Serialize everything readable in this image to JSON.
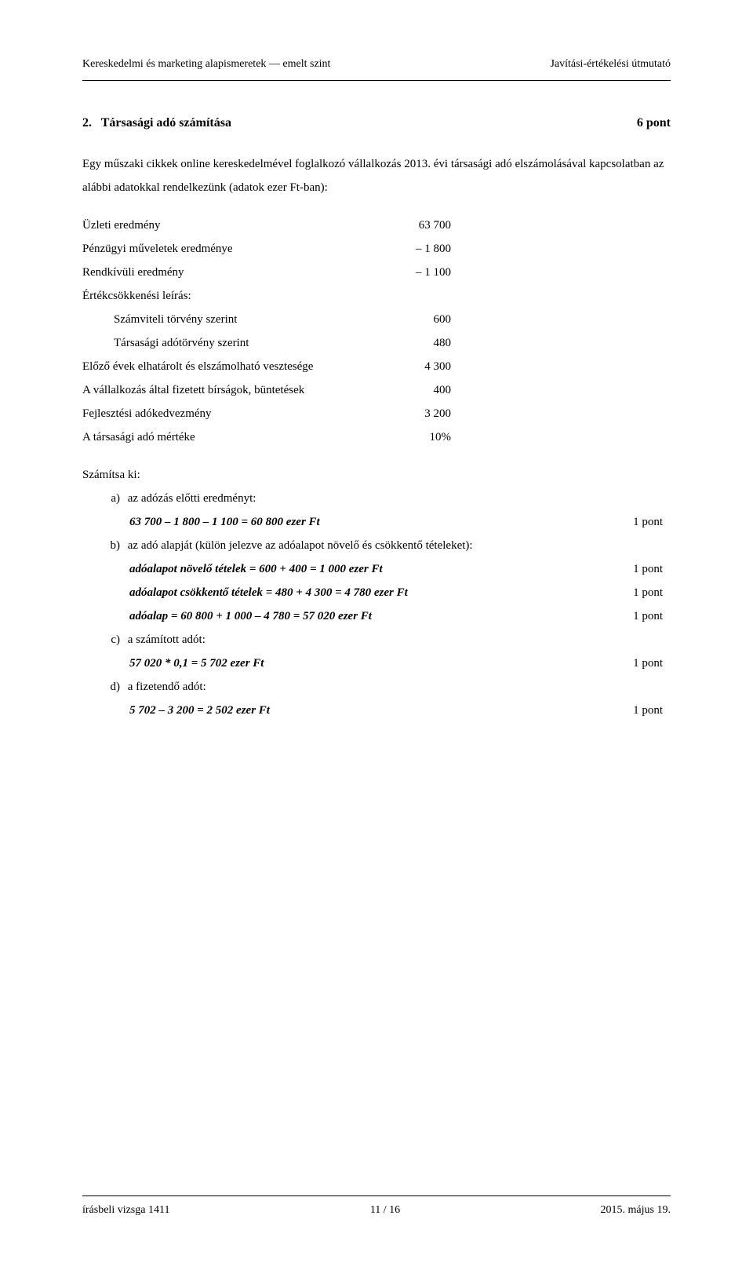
{
  "header": {
    "left": "Kereskedelmi és marketing alapismeretek — emelt szint",
    "right": "Javítási-értékelési útmutató"
  },
  "section": {
    "number": "2.",
    "title": "Társasági adó számítása",
    "points": "6 pont"
  },
  "intro": "Egy műszaki cikkek online kereskedelmével foglalkozó vállalkozás 2013. évi társasági adó elszámolásával kapcsolatban az alábbi adatokkal rendelkezünk (adatok ezer Ft-ban):",
  "data": {
    "r1": {
      "label": "Üzleti eredmény",
      "value": "63 700"
    },
    "r2": {
      "label": "Pénzügyi műveletek eredménye",
      "value": "– 1 800"
    },
    "r3": {
      "label": "Rendkívüli eredmény",
      "value": "– 1 100"
    },
    "r4": {
      "label": "Értékcsökkenési leírás:",
      "value": ""
    },
    "r5": {
      "label": "Számviteli törvény szerint",
      "value": "600"
    },
    "r6": {
      "label": "Társasági adótörvény szerint",
      "value": "480"
    },
    "r7": {
      "label": "Előző évek elhatárolt és elszámolható vesztesége",
      "value": "4 300"
    },
    "r8": {
      "label": "A vállalkozás által fizetett bírságok, büntetések",
      "value": "400"
    },
    "r9": {
      "label": "Fejlesztési adókedvezmény",
      "value": "3 200"
    },
    "r10": {
      "label": "A társasági adó mértéke",
      "value": "10%"
    }
  },
  "compute_label": "Számítsa ki:",
  "parts": {
    "a": {
      "letter": "a)",
      "prompt": "az adózás előtti eredményt:",
      "result": "63 700 – 1 800 – 1 100 = 60 800 ezer Ft",
      "points": "1 pont"
    },
    "b": {
      "letter": "b)",
      "prompt": "az adó alapját (külön jelezve az adóalapot növelő és csökkentő tételeket):",
      "r1": {
        "text": "adóalapot növelő tételek = 600 + 400 = 1 000 ezer Ft",
        "points": "1 pont"
      },
      "r2": {
        "text": "adóalapot csökkentő tételek = 480 + 4 300 = 4 780 ezer Ft",
        "points": "1 pont"
      },
      "r3": {
        "text": "adóalap = 60 800 + 1 000 – 4 780 = 57 020 ezer Ft",
        "points": "1 pont"
      }
    },
    "c": {
      "letter": "c)",
      "prompt": "a számított adót:",
      "result": "57 020 * 0,1 = 5 702 ezer Ft",
      "points": "1 pont"
    },
    "d": {
      "letter": "d)",
      "prompt": "a fizetendő adót:",
      "result": "5 702 – 3 200 = 2 502 ezer Ft",
      "points": "1 pont"
    }
  },
  "footer": {
    "left": "írásbeli vizsga 1411",
    "center": "11 / 16",
    "right": "2015. május 19."
  }
}
